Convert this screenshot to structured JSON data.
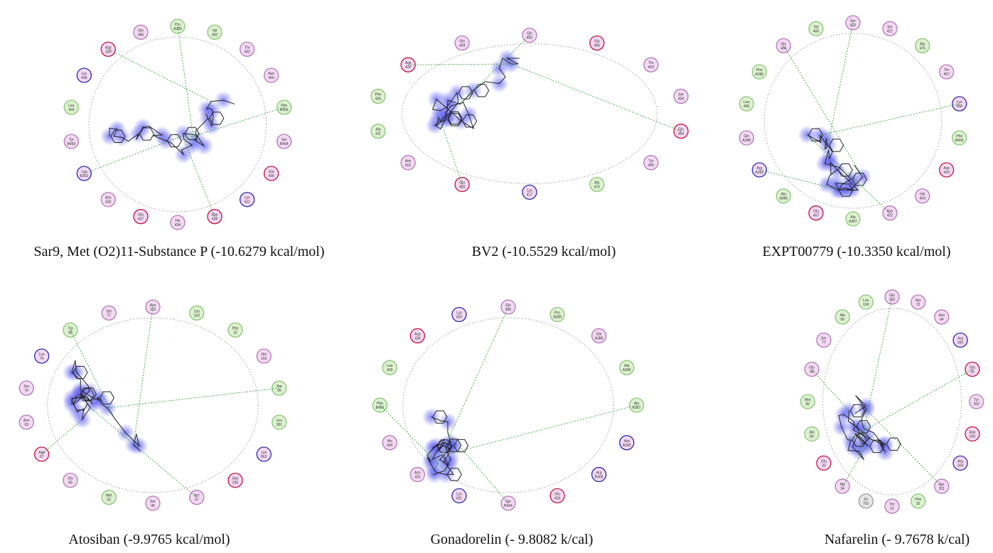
{
  "panels": [
    {
      "caption": "Sar9, Met (O2)11-Substance P (-10.6279 kcal/mol)",
      "residues": [
        {
          "name": "Pro",
          "num": "A389",
          "kind": "hydrophobic"
        },
        {
          "name": "Val",
          "num": "493",
          "kind": "hydrophobic"
        },
        {
          "name": "Thr",
          "num": "492",
          "kind": "polar"
        },
        {
          "name": "Asn",
          "num": "450",
          "kind": "polar"
        },
        {
          "name": "Phe",
          "num": "B456",
          "kind": "hydrophobic"
        },
        {
          "name": "Ser",
          "num": "B494",
          "kind": "polar"
        },
        {
          "name": "Glu",
          "num": "435",
          "kind": "acidic"
        },
        {
          "name": "Lys",
          "num": "431",
          "kind": "basic"
        },
        {
          "name": "Asp",
          "num": "438",
          "kind": "acidic"
        },
        {
          "name": "His",
          "num": "434",
          "kind": "polar"
        },
        {
          "name": "Glu",
          "num": "437",
          "kind": "acidic"
        },
        {
          "name": "Asn",
          "num": "433",
          "kind": "polar"
        },
        {
          "name": "Lys",
          "num": "B353",
          "kind": "basic"
        },
        {
          "name": "Tyr",
          "num": "B459",
          "kind": "polar"
        },
        {
          "name": "Leu",
          "num": "429",
          "kind": "hydrophobic"
        },
        {
          "name": "Lys",
          "num": "428",
          "kind": "basic"
        },
        {
          "name": "Asp",
          "num": "430",
          "kind": "acidic"
        },
        {
          "name": "Gln",
          "num": "496",
          "kind": "polar"
        }
      ]
    },
    {
      "caption": "BV2 (-10.5529 kcal/mol)",
      "residues": [
        {
          "name": "Gln",
          "num": "493",
          "kind": "polar"
        },
        {
          "name": "Glu",
          "num": "406",
          "kind": "acidic"
        },
        {
          "name": "Thr",
          "num": "453",
          "kind": "polar"
        },
        {
          "name": "Ser",
          "num": "494",
          "kind": "polar"
        },
        {
          "name": "Glu",
          "num": "484",
          "kind": "acidic"
        },
        {
          "name": "Tyr",
          "num": "495",
          "kind": "polar"
        },
        {
          "name": "Ala",
          "num": "475",
          "kind": "hydrophobic"
        },
        {
          "name": "Lys",
          "num": "417",
          "kind": "basic"
        },
        {
          "name": "Glu",
          "num": "485",
          "kind": "acidic"
        },
        {
          "name": "Asn",
          "num": "501",
          "kind": "polar"
        },
        {
          "name": "Ala",
          "num": "411",
          "kind": "hydrophobic"
        },
        {
          "name": "Phe",
          "num": "456",
          "kind": "hydrophobic"
        },
        {
          "name": "Asp",
          "num": "420",
          "kind": "acidic"
        },
        {
          "name": "Gln",
          "num": "409",
          "kind": "polar"
        }
      ]
    },
    {
      "caption": "EXPT00779 (-10.3350 kcal/mol)",
      "residues": [
        {
          "name": "Ser",
          "num": "415",
          "kind": "polar"
        },
        {
          "name": "Ser",
          "num": "421",
          "kind": "polar"
        },
        {
          "name": "Ala",
          "num": "475",
          "kind": "hydrophobic"
        },
        {
          "name": "Thr",
          "num": "457",
          "kind": "polar"
        },
        {
          "name": "Lys",
          "num": "458",
          "kind": "basic"
        },
        {
          "name": "Phe",
          "num": "B456",
          "kind": "hydrophobic"
        },
        {
          "name": "Asp",
          "num": "420",
          "kind": "acidic"
        },
        {
          "name": "His",
          "num": "454",
          "kind": "polar"
        },
        {
          "name": "Asn",
          "num": "422",
          "kind": "polar"
        },
        {
          "name": "Ala",
          "num": "A387",
          "kind": "hydrophobic"
        },
        {
          "name": "Glu",
          "num": "457",
          "kind": "acidic"
        },
        {
          "name": "Ala",
          "num": "A386",
          "kind": "hydrophobic"
        },
        {
          "name": "Arg",
          "num": "A393",
          "kind": "basic"
        },
        {
          "name": "Gln",
          "num": "A388",
          "kind": "polar"
        },
        {
          "name": "Leu",
          "num": "455",
          "kind": "hydrophobic"
        },
        {
          "name": "Phe",
          "num": "A390",
          "kind": "hydrophobic"
        },
        {
          "name": "Gln",
          "num": "496",
          "kind": "polar"
        },
        {
          "name": "Val",
          "num": "460",
          "kind": "hydrophobic"
        }
      ]
    },
    {
      "caption": "Atosiban (-9.9765 kcal/mol)",
      "residues": [
        {
          "name": "Asn",
          "num": "103",
          "kind": "polar"
        },
        {
          "name": "Leu",
          "num": "100",
          "kind": "hydrophobic"
        },
        {
          "name": "Phe",
          "num": "32",
          "kind": "hydrophobic"
        },
        {
          "name": "Gln",
          "num": "102",
          "kind": "polar"
        },
        {
          "name": "Ala",
          "num": "99",
          "kind": "hydrophobic"
        },
        {
          "name": "Leu",
          "num": "391",
          "kind": "hydrophobic"
        },
        {
          "name": "Lys",
          "num": "562",
          "kind": "basic"
        },
        {
          "name": "Asp",
          "num": "206",
          "kind": "acidic"
        },
        {
          "name": "Ser",
          "num": "47",
          "kind": "polar"
        },
        {
          "name": "Ser",
          "num": "45",
          "kind": "polar"
        },
        {
          "name": "Met",
          "num": "62",
          "kind": "hydrophobic"
        },
        {
          "name": "Gly",
          "num": "66",
          "kind": "polar"
        },
        {
          "name": "Asp",
          "num": "67",
          "kind": "acidic"
        },
        {
          "name": "Asn",
          "num": "63",
          "kind": "polar"
        },
        {
          "name": "Ser",
          "num": "70",
          "kind": "polar"
        },
        {
          "name": "Lys",
          "num": "74",
          "kind": "basic"
        },
        {
          "name": "Trp",
          "num": "68",
          "kind": "hydrophobic"
        },
        {
          "name": "Ser",
          "num": "77",
          "kind": "polar"
        }
      ]
    },
    {
      "caption": "Gonadorelin (- 9.8082 k/cal)",
      "residues": [
        {
          "name": "Gln",
          "num": "496",
          "kind": "polar"
        },
        {
          "name": "Pro",
          "num": "A389",
          "kind": "hydrophobic"
        },
        {
          "name": "Gln",
          "num": "A388",
          "kind": "polar"
        },
        {
          "name": "Ala",
          "num": "A386",
          "kind": "hydrophobic"
        },
        {
          "name": "Ala",
          "num": "A387",
          "kind": "hydrophobic"
        },
        {
          "name": "Arg",
          "num": "A393",
          "kind": "basic"
        },
        {
          "name": "Arg",
          "num": "B408",
          "kind": "basic"
        },
        {
          "name": "Glu",
          "num": "435",
          "kind": "acidic"
        },
        {
          "name": "Ser",
          "num": "B494",
          "kind": "polar"
        },
        {
          "name": "Lys",
          "num": "431",
          "kind": "basic"
        },
        {
          "name": "Asn",
          "num": "433",
          "kind": "polar"
        },
        {
          "name": "His",
          "num": "434",
          "kind": "polar"
        },
        {
          "name": "Phe",
          "num": "B456",
          "kind": "hydrophobic"
        },
        {
          "name": "Leu",
          "num": "429",
          "kind": "hydrophobic"
        },
        {
          "name": "Asp",
          "num": "430",
          "kind": "acidic"
        },
        {
          "name": "Lys",
          "num": "420",
          "kind": "basic"
        }
      ]
    },
    {
      "caption": "Nafarelin (- 9.7678 k/cal)",
      "residues": [
        {
          "name": "Gln",
          "num": "102",
          "kind": "polar"
        },
        {
          "name": "Ser",
          "num": "72",
          "kind": "polar"
        },
        {
          "name": "Asn",
          "num": "64",
          "kind": "polar"
        },
        {
          "name": "Arg",
          "num": "393",
          "kind": "basic"
        },
        {
          "name": "Glu",
          "num": "35",
          "kind": "acidic"
        },
        {
          "name": "Tyr",
          "num": "202",
          "kind": "polar"
        },
        {
          "name": "Asp",
          "num": "206",
          "kind": "acidic"
        },
        {
          "name": "Arg",
          "num": "204",
          "kind": "basic"
        },
        {
          "name": "Ser",
          "num": "201",
          "kind": "polar"
        },
        {
          "name": "Phe",
          "num": "32",
          "kind": "hydrophobic"
        },
        {
          "name": "Thr",
          "num": "31",
          "kind": "polar"
        },
        {
          "name": "Zn",
          "num": "701",
          "kind": "metal"
        },
        {
          "name": "His",
          "num": "34",
          "kind": "polar"
        },
        {
          "name": "Glu",
          "num": "30",
          "kind": "acidic"
        },
        {
          "name": "Ala",
          "num": "80",
          "kind": "hydrophobic"
        },
        {
          "name": "Met",
          "num": "82",
          "kind": "hydrophobic"
        },
        {
          "name": "Gly",
          "num": "98",
          "kind": "polar"
        },
        {
          "name": "Ser",
          "num": "77",
          "kind": "polar"
        },
        {
          "name": "Ala",
          "num": "99",
          "kind": "hydrophobic"
        },
        {
          "name": "Leu",
          "num": "100",
          "kind": "hydrophobic"
        }
      ]
    }
  ]
}
